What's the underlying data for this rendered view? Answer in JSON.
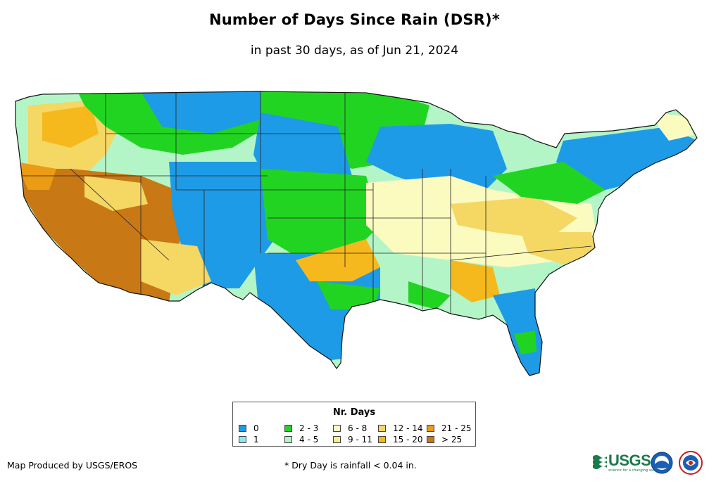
{
  "title": "Number of Days Since Rain (DSR)*",
  "subtitle": "in past 30 days, as of Jun 21, 2024",
  "legend": {
    "title": "Nr. Days",
    "items": [
      {
        "label": "0",
        "color": "#1e9be6"
      },
      {
        "label": "1",
        "color": "#8ee6f5"
      },
      {
        "label": "2 - 3",
        "color": "#22d422"
      },
      {
        "label": "4 - 5",
        "color": "#b4f5c8"
      },
      {
        "label": "6 - 8",
        "color": "#fbfbc0"
      },
      {
        "label": "9 - 11",
        "color": "#f5f08c"
      },
      {
        "label": "12 - 14",
        "color": "#f5d764"
      },
      {
        "label": "15 - 20",
        "color": "#f5b91e"
      },
      {
        "label": "21 - 25",
        "color": "#eb9b14"
      },
      {
        "label": "> 25",
        "color": "#c87814"
      }
    ]
  },
  "credit": "Map Produced by USGS/EROS",
  "footnote": "* Dry Day is rainfall < 0.04 in.",
  "logos": {
    "usgs_text": "USGS",
    "usgs_tagline": "science for a changing world"
  }
}
